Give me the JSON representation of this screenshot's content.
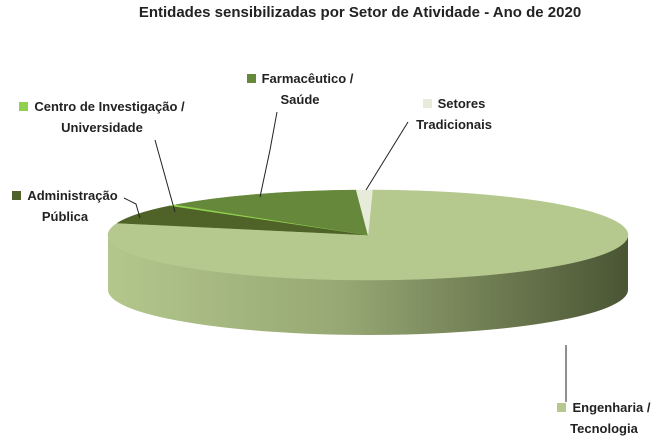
{
  "chart_data": {
    "type": "pie3d",
    "title": "Entidades sensibilizadas por Setor de Atividade - Ano de 2020",
    "categories": [
      "Engenharia / Tecnologia",
      "Administração Pública",
      "Centro de Investigação / Universidade",
      "Farmacêutico / Saúde",
      "Setores Tradicionais"
    ],
    "values": [
      79,
      7,
      0.5,
      12.5,
      1
    ],
    "colors": [
      "#b5c98e",
      "#4f6228",
      "#92d050",
      "#66883a",
      "#e6ecd9"
    ]
  }
}
